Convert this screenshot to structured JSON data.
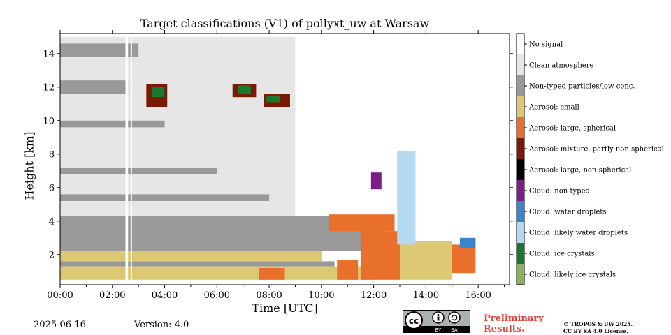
{
  "chart_data": {
    "type": "heatmap",
    "title": "Target classifications (V1) of pollyxt_uw at Warsaw",
    "xlabel": "Time [UTC]",
    "ylabel": "Height [km]",
    "xlim_hours": [
      0,
      17.2
    ],
    "ylim_km": [
      0.2,
      15.2
    ],
    "x_ticks": [
      {
        "value": 0,
        "label": "00:00"
      },
      {
        "value": 2,
        "label": "02:00"
      },
      {
        "value": 4,
        "label": "04:00"
      },
      {
        "value": 6,
        "label": "06:00"
      },
      {
        "value": 8,
        "label": "08:00"
      },
      {
        "value": 10,
        "label": "10:00"
      },
      {
        "value": 12,
        "label": "12:00"
      },
      {
        "value": 14,
        "label": "14:00"
      },
      {
        "value": 16,
        "label": "16:00"
      }
    ],
    "y_ticks": [
      {
        "value": 2,
        "label": "2"
      },
      {
        "value": 4,
        "label": "4"
      },
      {
        "value": 6,
        "label": "6"
      },
      {
        "value": 8,
        "label": "8"
      },
      {
        "value": 10,
        "label": "10"
      },
      {
        "value": 12,
        "label": "12"
      },
      {
        "value": 14,
        "label": "14"
      }
    ],
    "classes": [
      {
        "label": "Cloud: likely ice crystals",
        "color": "#8cb05c"
      },
      {
        "label": "Cloud: ice crystals",
        "color": "#18782f"
      },
      {
        "label": "Cloud: likely water droplets",
        "color": "#b5d9f0"
      },
      {
        "label": "Cloud: water droplets",
        "color": "#3a85c9"
      },
      {
        "label": "Cloud: non-typed",
        "color": "#7a1f88"
      },
      {
        "label": "Aerosol: large, non-spherical",
        "color": "#000000"
      },
      {
        "label": "Aerosol: mixture, partly non-spherical",
        "color": "#7a1a05"
      },
      {
        "label": "Aerosol: large, spherical",
        "color": "#e8702a"
      },
      {
        "label": "Aerosol: small",
        "color": "#dcc873"
      },
      {
        "label": "Non-typed particles/low conc.",
        "color": "#999999"
      },
      {
        "label": "Clean atmosphere",
        "color": "#e6e6e6"
      },
      {
        "label": "No signal",
        "color": "#ffffff"
      }
    ],
    "regions": [
      {
        "class": "Clean atmosphere",
        "t0": 0.0,
        "t1": 9.0,
        "h0": 4.3,
        "h1": 15.0
      },
      {
        "class": "Non-typed particles/low conc.",
        "t0": 0.0,
        "t1": 2.6,
        "h0": 11.6,
        "h1": 12.4
      },
      {
        "class": "Non-typed particles/low conc.",
        "t0": 0.0,
        "t1": 3.0,
        "h0": 13.8,
        "h1": 14.6
      },
      {
        "class": "Non-typed particles/low conc.",
        "t0": 0.0,
        "t1": 4.0,
        "h0": 9.6,
        "h1": 10.0
      },
      {
        "class": "Non-typed particles/low conc.",
        "t0": 0.0,
        "t1": 6.0,
        "h0": 6.8,
        "h1": 7.2
      },
      {
        "class": "Non-typed particles/low conc.",
        "t0": 0.0,
        "t1": 8.0,
        "h0": 5.2,
        "h1": 5.6
      },
      {
        "class": "Non-typed particles/low conc.",
        "t0": 0.0,
        "t1": 12.5,
        "h0": 2.2,
        "h1": 4.3
      },
      {
        "class": "Non-typed particles/low conc.",
        "t0": 0.0,
        "t1": 10.5,
        "h0": 1.3,
        "h1": 1.6
      },
      {
        "class": "Aerosol: small",
        "t0": 0.0,
        "t1": 12.0,
        "h0": 0.5,
        "h1": 1.3
      },
      {
        "class": "Aerosol: small",
        "t0": 0.0,
        "t1": 10.0,
        "h0": 1.6,
        "h1": 2.2
      },
      {
        "class": "Aerosol: small",
        "t0": 13.0,
        "t1": 15.0,
        "h0": 0.5,
        "h1": 2.8
      },
      {
        "class": "Aerosol: large, spherical",
        "t0": 10.3,
        "t1": 12.8,
        "h0": 3.4,
        "h1": 4.4
      },
      {
        "class": "Aerosol: large, spherical",
        "t0": 11.5,
        "t1": 13.0,
        "h0": 0.5,
        "h1": 3.4
      },
      {
        "class": "Aerosol: large, spherical",
        "t0": 7.6,
        "t1": 8.6,
        "h0": 0.5,
        "h1": 1.2
      },
      {
        "class": "Aerosol: large, spherical",
        "t0": 10.6,
        "t1": 11.4,
        "h0": 0.5,
        "h1": 1.7
      },
      {
        "class": "Aerosol: large, spherical",
        "t0": 15.0,
        "t1": 15.9,
        "h0": 0.9,
        "h1": 2.6
      },
      {
        "class": "Cloud: water droplets",
        "t0": 15.3,
        "t1": 15.9,
        "h0": 2.4,
        "h1": 3.0
      },
      {
        "class": "Cloud: likely water droplets",
        "t0": 12.9,
        "t1": 13.6,
        "h0": 2.6,
        "h1": 8.2
      },
      {
        "class": "Cloud: non-typed",
        "t0": 11.9,
        "t1": 12.3,
        "h0": 5.9,
        "h1": 6.9
      },
      {
        "class": "Aerosol: mixture, partly non-spherical",
        "t0": 3.3,
        "t1": 4.1,
        "h0": 10.8,
        "h1": 12.2
      },
      {
        "class": "Cloud: ice crystals",
        "t0": 3.5,
        "t1": 4.0,
        "h0": 11.4,
        "h1": 12.0
      },
      {
        "class": "Aerosol: mixture, partly non-spherical",
        "t0": 6.6,
        "t1": 7.5,
        "h0": 11.4,
        "h1": 12.2
      },
      {
        "class": "Cloud: ice crystals",
        "t0": 6.8,
        "t1": 7.3,
        "h0": 11.6,
        "h1": 12.1
      },
      {
        "class": "Aerosol: mixture, partly non-spherical",
        "t0": 7.8,
        "t1": 8.8,
        "h0": 10.8,
        "h1": 11.6
      },
      {
        "class": "Cloud: ice crystals",
        "t0": 7.9,
        "t1": 8.4,
        "h0": 11.1,
        "h1": 11.5
      },
      {
        "class": "No signal",
        "t0": 2.5,
        "t1": 2.6,
        "h0": 0.2,
        "h1": 15.2
      },
      {
        "class": "No signal",
        "t0": 2.7,
        "t1": 2.75,
        "h0": 0.2,
        "h1": 15.2
      }
    ]
  },
  "footer": {
    "date": "2025-06-16",
    "version": "Version: 4.0",
    "cc_text": "cc",
    "cc_by": "BY",
    "cc_sa": "SA",
    "preliminary_line1": "Preliminary",
    "preliminary_line2": "Results.",
    "license_line1": "© TROPOS & UW 2025.",
    "license_line2": "CC BY SA 4.0 License."
  }
}
